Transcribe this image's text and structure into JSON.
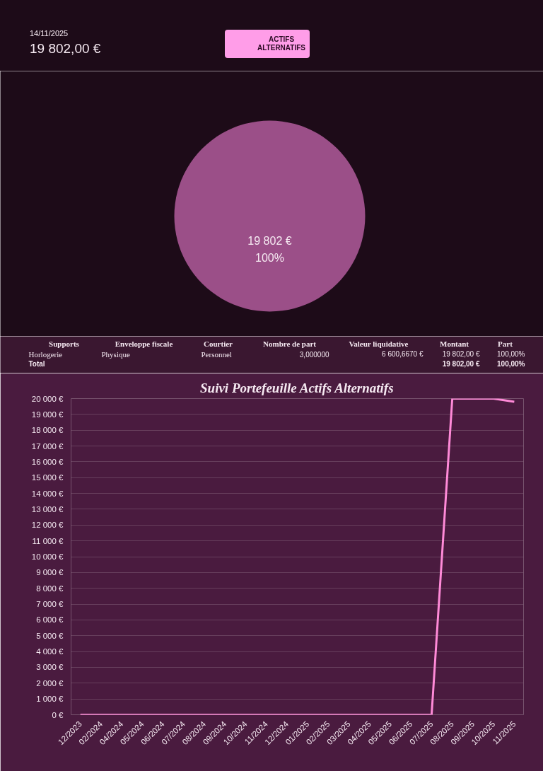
{
  "chart_data": [
    {
      "type": "other",
      "annotations": [
        "14/11/2025",
        "19 802,00 €",
        "ACTIFS ALTERNATIFS"
      ]
    },
    {
      "type": "pie",
      "categories": [
        null
      ],
      "values": [
        19802
      ],
      "colors": [
        "#9b4f88"
      ],
      "value_labels": [
        "19 802 €\n100%"
      ]
    },
    {
      "type": "other",
      "categories": [
        "Supports",
        "Enveloppe fiscale",
        "Courtier",
        "Nombre de part",
        "Valeur liquidative",
        "Montant",
        "Part"
      ],
      "cell_labels": [
        [
          "Horlogerie",
          "Physique",
          "Personnel",
          "3,000000",
          "6 600,6670 €",
          "19 802,00 €",
          "100,00%"
        ],
        [
          "Total",
          null,
          null,
          null,
          null,
          "19 802,00 €",
          "100,00%"
        ]
      ]
    },
    {
      "type": "line",
      "title": "Suivi Portefeuille Actifs Alternatifs",
      "categories": [
        "12/2023",
        "02/2024",
        "04/2024",
        "05/2024",
        "06/2024",
        "07/2024",
        "08/2024",
        "09/2024",
        "10/2024",
        "11/2024",
        "12/2024",
        "01/2025",
        "02/2025",
        "03/2025",
        "04/2025",
        "05/2025",
        "06/2025",
        "07/2025",
        "08/2025",
        "09/2025",
        "10/2025",
        "11/2025"
      ],
      "values": [
        0,
        0,
        0,
        0,
        0,
        0,
        0,
        0,
        0,
        0,
        0,
        0,
        0,
        0,
        0,
        0,
        0,
        0,
        20000,
        20000,
        20000,
        19800
      ],
      "color": "#ff8ad8",
      "ylim": [
        0,
        20000
      ],
      "yticks": [
        {
          "value": 0,
          "label": "0 €"
        },
        {
          "value": 1000,
          "label": "1 000 €"
        },
        {
          "value": 2000,
          "label": "2 000 €"
        },
        {
          "value": 3000,
          "label": "3 000 €"
        },
        {
          "value": 4000,
          "label": "4 000 €"
        },
        {
          "value": 5000,
          "label": "5 000 €"
        },
        {
          "value": 6000,
          "label": "6 000 €"
        },
        {
          "value": 7000,
          "label": "7 000 €"
        },
        {
          "value": 8000,
          "label": "8 000 €"
        },
        {
          "value": 9000,
          "label": "9 000 €"
        },
        {
          "value": 10000,
          "label": "10 000 €"
        },
        {
          "value": 11000,
          "label": "11 000 €"
        },
        {
          "value": 12000,
          "label": "12 000 €"
        },
        {
          "value": 13000,
          "label": "13 000 €"
        },
        {
          "value": 14000,
          "label": "14 000 €"
        },
        {
          "value": 15000,
          "label": "15 000 €"
        },
        {
          "value": 16000,
          "label": "16 000 €"
        },
        {
          "value": 17000,
          "label": "17 000 €"
        },
        {
          "value": 18000,
          "label": "18 000 €"
        },
        {
          "value": 19000,
          "label": "19 000 €"
        },
        {
          "value": 20000,
          "label": "20 000 €"
        }
      ],
      "grid": "y",
      "line_style": "solid"
    }
  ]
}
